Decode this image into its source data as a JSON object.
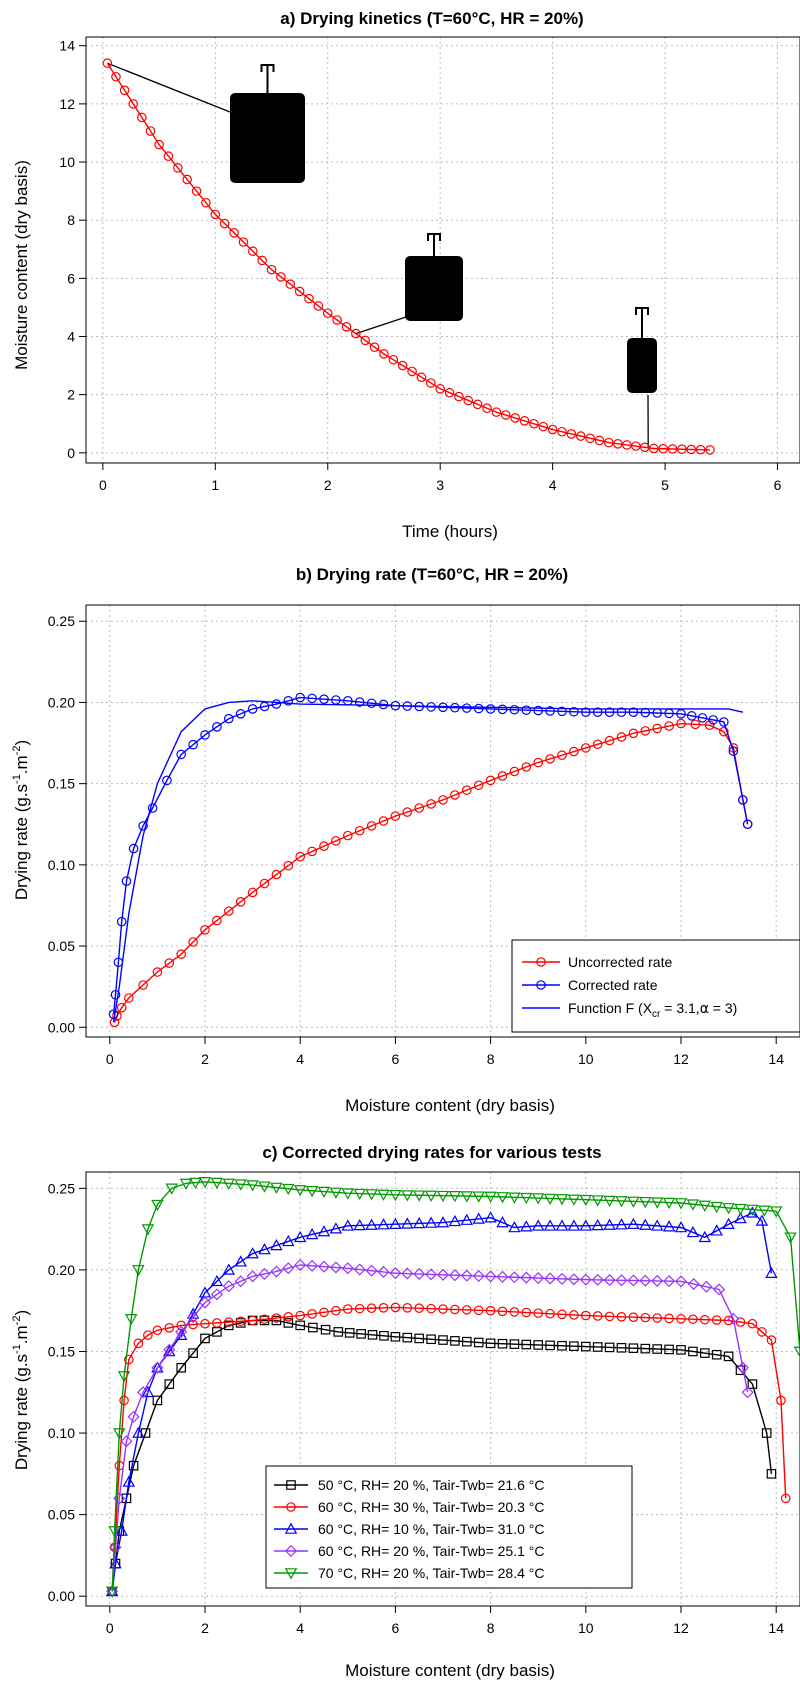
{
  "chart_data": [
    {
      "type": "line",
      "title": "a) Drying kinetics (T=60°C, HR = 20%)",
      "xlabel": "Time (hours)",
      "ylabel": "Moisture content (dry basis)",
      "xlim": [
        -0.15,
        6.2
      ],
      "ylim": [
        -0.35,
        14.3
      ],
      "xticks": [
        "0",
        "1",
        "2",
        "3",
        "4",
        "5",
        "6"
      ],
      "yticks": [
        "0",
        "2",
        "4",
        "6",
        "8",
        "10",
        "12",
        "14"
      ],
      "grid": true,
      "series": [
        {
          "color": "#ff0000",
          "marker": "circle",
          "x": [
            0.04,
            0.5,
            1.0,
            1.5,
            2.0,
            2.5,
            3.0,
            3.5,
            4.0,
            4.5,
            4.9,
            5.4
          ],
          "y": [
            13.4,
            10.6,
            8.2,
            6.3,
            4.8,
            3.4,
            2.2,
            1.4,
            0.8,
            0.35,
            0.15,
            0.1
          ]
        }
      ],
      "annotations": [
        {
          "kind": "sample-photo",
          "size": "large",
          "x": 0.04,
          "y": 13.4
        },
        {
          "kind": "sample-photo",
          "size": "medium",
          "x": 2.25,
          "y": 4.1
        },
        {
          "kind": "sample-photo",
          "size": "small",
          "x": 4.85,
          "y": 0.2
        }
      ]
    },
    {
      "type": "line",
      "title": "b) Drying rate (T=60°C, HR = 20%)",
      "xlabel": "Moisture content (dry basis)",
      "ylabel": "Drying rate (g.s⁻¹.m⁻²)",
      "xlim": [
        -0.5,
        14.5
      ],
      "ylim": [
        -0.006,
        0.26
      ],
      "xticks": [
        "0",
        "2",
        "4",
        "6",
        "8",
        "10",
        "12",
        "14"
      ],
      "yticks": [
        "0.00",
        "0.05",
        "0.10",
        "0.15",
        "0.20",
        "0.25"
      ],
      "grid": true,
      "legend": "bottom-right",
      "series": [
        {
          "name": "Uncorrected rate",
          "color": "#ff0000",
          "marker": "circle",
          "x": [
            0.1,
            0.15,
            0.25,
            0.4,
            0.7,
            1.0,
            1.5,
            2.0,
            3.0,
            4.0,
            5.0,
            6.0,
            7.0,
            8.0,
            9.0,
            10.0,
            11.0,
            12.0,
            12.6,
            12.9,
            13.1,
            13.3,
            13.4
          ],
          "y": [
            0.003,
            0.007,
            0.012,
            0.018,
            0.026,
            0.034,
            0.045,
            0.06,
            0.083,
            0.105,
            0.118,
            0.13,
            0.14,
            0.152,
            0.163,
            0.172,
            0.181,
            0.187,
            0.186,
            0.182,
            0.172,
            0.14,
            0.125
          ]
        },
        {
          "name": "Corrected rate",
          "color": "#0000ff",
          "marker": "circle",
          "x": [
            0.08,
            0.12,
            0.18,
            0.25,
            0.35,
            0.5,
            0.7,
            0.9,
            1.2,
            1.5,
            2.0,
            2.5,
            3.0,
            3.5,
            4.0,
            5.0,
            6.0,
            7.0,
            8.0,
            9.0,
            10.0,
            11.0,
            12.0,
            12.9,
            13.1,
            13.3,
            13.4
          ],
          "y": [
            0.008,
            0.02,
            0.04,
            0.065,
            0.09,
            0.11,
            0.124,
            0.135,
            0.152,
            0.168,
            0.18,
            0.19,
            0.196,
            0.199,
            0.203,
            0.201,
            0.198,
            0.197,
            0.196,
            0.195,
            0.194,
            0.194,
            0.193,
            0.188,
            0.17,
            0.14,
            0.125
          ]
        },
        {
          "name": "Function F (Xcr = 3.1,α = 3)",
          "color": "#0000ff",
          "marker": "none",
          "x": [
            0.08,
            0.2,
            0.4,
            0.7,
            1.0,
            1.5,
            2.0,
            2.5,
            3.0,
            4.0,
            6.0,
            8.0,
            10.0,
            12.0,
            13.0,
            13.3
          ],
          "y": [
            0.003,
            0.025,
            0.07,
            0.118,
            0.15,
            0.182,
            0.196,
            0.2,
            0.201,
            0.199,
            0.198,
            0.197,
            0.196,
            0.196,
            0.196,
            0.194
          ]
        }
      ]
    },
    {
      "type": "line",
      "title": "c) Corrected drying rates for various tests",
      "xlabel": "Moisture content (dry basis)",
      "ylabel": "Drying rate (g.s⁻¹.m⁻²)",
      "xlim": [
        -0.5,
        14.5
      ],
      "ylim": [
        -0.006,
        0.26
      ],
      "xticks": [
        "0",
        "2",
        "4",
        "6",
        "8",
        "10",
        "12",
        "14"
      ],
      "yticks": [
        "0.00",
        "0.05",
        "0.10",
        "0.15",
        "0.20",
        "0.25"
      ],
      "grid": true,
      "legend": "bottom-center",
      "series": [
        {
          "name": "50 °C, RH= 20 %, Tair-Twb= 21.6 °C",
          "color": "#000000",
          "marker": "square",
          "x": [
            0.05,
            0.12,
            0.2,
            0.35,
            0.5,
            0.75,
            1.0,
            1.5,
            2.0,
            2.5,
            3.0,
            3.5,
            4.0,
            4.8,
            6.0,
            8.0,
            10.0,
            12.0,
            13.0,
            13.5,
            13.8,
            13.9
          ],
          "y": [
            0.003,
            0.02,
            0.04,
            0.06,
            0.08,
            0.1,
            0.12,
            0.14,
            0.158,
            0.166,
            0.169,
            0.169,
            0.166,
            0.162,
            0.159,
            0.155,
            0.153,
            0.151,
            0.147,
            0.13,
            0.1,
            0.075
          ]
        },
        {
          "name": "60 °C, RH= 30 %, Tair-Twb= 20.3 °C",
          "color": "#ff0000",
          "marker": "circle",
          "x": [
            0.05,
            0.1,
            0.2,
            0.3,
            0.4,
            0.6,
            0.8,
            1.0,
            1.5,
            2.0,
            3.0,
            4.0,
            5.0,
            6.0,
            8.0,
            10.0,
            12.0,
            13.0,
            13.5,
            13.9,
            14.1,
            14.2
          ],
          "y": [
            0.003,
            0.03,
            0.08,
            0.12,
            0.145,
            0.155,
            0.16,
            0.163,
            0.166,
            0.167,
            0.169,
            0.172,
            0.176,
            0.177,
            0.175,
            0.172,
            0.17,
            0.169,
            0.167,
            0.157,
            0.12,
            0.06
          ]
        },
        {
          "name": "60 °C, RH= 10 %, Tair-Twb= 31.0 °C",
          "color": "#0000ff",
          "marker": "triangle",
          "x": [
            0.05,
            0.12,
            0.25,
            0.4,
            0.6,
            0.8,
            1.0,
            1.5,
            2.0,
            2.5,
            3.0,
            4.0,
            5.0,
            6.0,
            7.0,
            8.0,
            8.5,
            9.0,
            10.0,
            11.0,
            12.0,
            12.5,
            13.0,
            13.5,
            13.7,
            13.9
          ],
          "y": [
            0.003,
            0.02,
            0.04,
            0.07,
            0.1,
            0.125,
            0.14,
            0.16,
            0.186,
            0.2,
            0.21,
            0.22,
            0.227,
            0.228,
            0.229,
            0.232,
            0.226,
            0.227,
            0.227,
            0.228,
            0.226,
            0.22,
            0.228,
            0.235,
            0.23,
            0.198
          ]
        },
        {
          "name": "60 °C, RH= 20 %, Tair-Twb= 25.1 °C",
          "color": "#9933ff",
          "marker": "diamond",
          "x": [
            0.05,
            0.12,
            0.2,
            0.35,
            0.5,
            0.7,
            1.0,
            1.5,
            2.0,
            2.5,
            3.0,
            3.5,
            4.0,
            5.0,
            6.0,
            7.0,
            8.0,
            10.0,
            12.0,
            12.8,
            13.1,
            13.3,
            13.4
          ],
          "y": [
            0.003,
            0.03,
            0.06,
            0.095,
            0.11,
            0.125,
            0.14,
            0.162,
            0.18,
            0.19,
            0.196,
            0.199,
            0.203,
            0.201,
            0.198,
            0.197,
            0.196,
            0.194,
            0.193,
            0.188,
            0.17,
            0.14,
            0.125
          ]
        },
        {
          "name": "70 °C, RH= 20 %, Tair-Twb= 28.4 °C",
          "color": "#009900",
          "marker": "triangle-down",
          "x": [
            0.05,
            0.1,
            0.2,
            0.3,
            0.45,
            0.6,
            0.8,
            1.0,
            1.3,
            1.6,
            2.0,
            2.5,
            3.0,
            4.0,
            5.0,
            6.0,
            8.0,
            10.0,
            12.0,
            13.0,
            14.0,
            14.3,
            14.5
          ],
          "y": [
            0.003,
            0.04,
            0.1,
            0.135,
            0.17,
            0.2,
            0.225,
            0.24,
            0.25,
            0.253,
            0.254,
            0.253,
            0.252,
            0.249,
            0.247,
            0.246,
            0.245,
            0.243,
            0.241,
            0.238,
            0.236,
            0.22,
            0.15
          ]
        }
      ]
    }
  ],
  "legend_b": {
    "uncorrected": "Uncorrected rate",
    "corrected": "Corrected rate",
    "function_prefix": "Function F (X",
    "function_sub": "cr",
    "function_mid": " = 3.1,",
    "function_alpha": "α",
    "function_suffix": " = 3)"
  },
  "ylabel_rate": {
    "prefix": "Drying rate (g.s",
    "sup1": "-1",
    "mid": ".m",
    "sup2": "-2",
    "suffix": ")"
  },
  "colors": {
    "red": "#ff0000",
    "blue": "#0000ff",
    "black": "#000000",
    "purple": "#9933ff",
    "green": "#009900",
    "grid": "#bbbbbb"
  }
}
